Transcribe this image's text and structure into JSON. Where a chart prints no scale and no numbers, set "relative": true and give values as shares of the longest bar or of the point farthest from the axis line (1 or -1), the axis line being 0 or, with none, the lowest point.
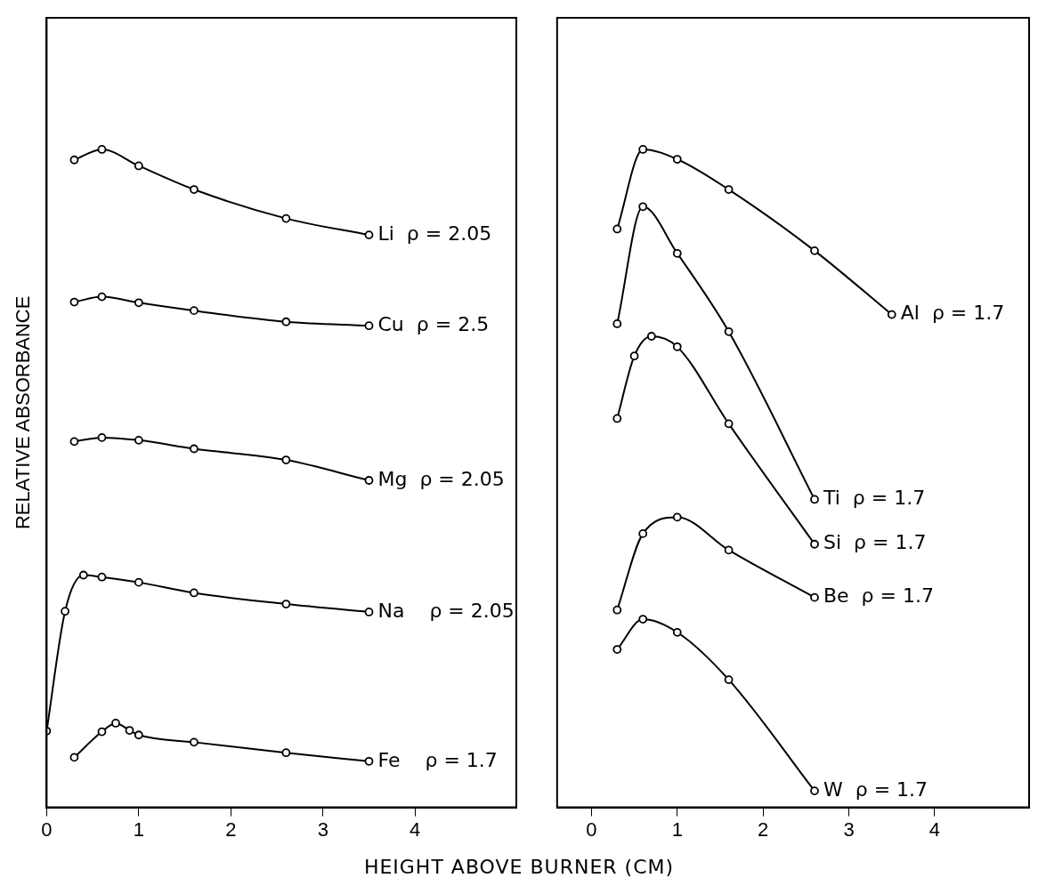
{
  "chart_data": [
    {
      "type": "line",
      "xlabel": "HEIGHT ABOVE BURNER (CM)",
      "ylabel": "RELATIVE ABSORBANCE",
      "relative": true,
      "xlim": [
        0,
        5.1
      ],
      "xticks": [
        0,
        1,
        2,
        3,
        4
      ],
      "marker": "circle",
      "grid": false,
      "legend": false,
      "series": [
        {
          "name": "Li  ρ = 2.05",
          "color": "#000000",
          "x": [
            0.3,
            0.6,
            1,
            1.6,
            2.6,
            3.5
          ],
          "values": [
            0.984,
            1,
            0.975,
            0.939,
            0.895,
            0.87
          ]
        },
        {
          "name": "Cu  ρ = 2.5",
          "color": "#000000",
          "x": [
            0.3,
            0.6,
            1,
            1.6,
            2.6,
            3.5
          ],
          "values": [
            0.768,
            0.776,
            0.767,
            0.755,
            0.738,
            0.732
          ]
        },
        {
          "name": "Mg  ρ = 2.05",
          "color": "#000000",
          "x": [
            0.3,
            0.6,
            1,
            1.6,
            2.6,
            3.5
          ],
          "values": [
            0.556,
            0.562,
            0.558,
            0.545,
            0.528,
            0.497
          ]
        },
        {
          "name": "Na    ρ = 2.05",
          "color": "#000000",
          "x": [
            0,
            0.2,
            0.4,
            0.6,
            1,
            1.6,
            2.6,
            3.5
          ],
          "values": [
            0.116,
            0.298,
            0.353,
            0.35,
            0.342,
            0.326,
            0.309,
            0.297
          ]
        },
        {
          "name": "Fe    ρ = 1.7",
          "color": "#000000",
          "x": [
            0.3,
            0.6,
            0.75,
            0.9,
            1,
            1.6,
            2.6,
            3.5
          ],
          "values": [
            0.076,
            0.115,
            0.128,
            0.117,
            0.11,
            0.099,
            0.083,
            0.07
          ]
        }
      ]
    },
    {
      "type": "line",
      "relative": true,
      "xlim": [
        -0.4,
        5.1
      ],
      "xticks": [
        0,
        1,
        2,
        3,
        4
      ],
      "marker": "circle",
      "grid": false,
      "legend": false,
      "series": [
        {
          "name": "Al  ρ = 1.7",
          "color": "#000000",
          "x": [
            0.3,
            0.6,
            1,
            1.6,
            2.6,
            3.5
          ],
          "values": [
            0.879,
            1,
            0.985,
            0.939,
            0.846,
            0.749
          ]
        },
        {
          "name": "Ti  ρ = 1.7",
          "color": "#000000",
          "x": [
            0.3,
            0.6,
            1,
            1.6,
            2.6
          ],
          "values": [
            0.735,
            0.913,
            0.842,
            0.723,
            0.468
          ]
        },
        {
          "name": "Si  ρ = 1.7",
          "color": "#000000",
          "x": [
            0.3,
            0.5,
            0.7,
            1,
            1.6,
            2.6
          ],
          "values": [
            0.591,
            0.686,
            0.716,
            0.7,
            0.583,
            0.4
          ]
        },
        {
          "name": "Be  ρ = 1.7",
          "color": "#000000",
          "x": [
            0.3,
            0.6,
            1,
            1.6,
            2.6
          ],
          "values": [
            0.3,
            0.416,
            0.441,
            0.391,
            0.319
          ]
        },
        {
          "name": "W  ρ = 1.7",
          "color": "#000000",
          "x": [
            0.3,
            0.6,
            1,
            1.6,
            2.6
          ],
          "values": [
            0.24,
            0.286,
            0.266,
            0.194,
            0.025
          ]
        }
      ]
    }
  ]
}
